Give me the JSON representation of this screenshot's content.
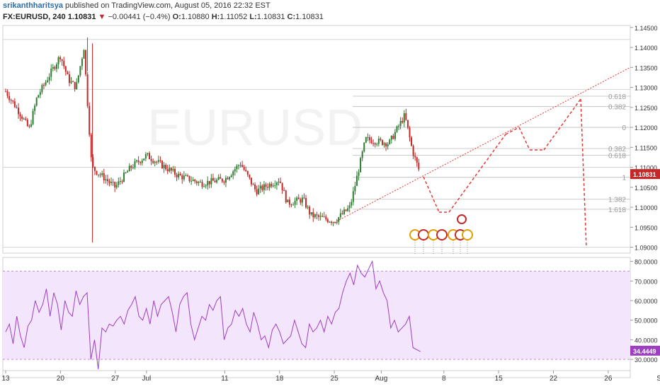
{
  "header": {
    "author": "srikanthharitsya",
    "published_text": "published on TradingView.com, August 05, 2016 22:32 EST",
    "symbol": "FX:EURUSD, 240",
    "last": "1.10831",
    "change_arrow": "▼",
    "change": "−0.00441 (−0.4%)",
    "o_label": "O:",
    "o_value": "1.10880",
    "h_label": "H:",
    "h_value": "1.11052",
    "l_label": "L:",
    "l_value": "1.10831",
    "c_label": "C:",
    "c_value": "1.10831"
  },
  "watermark": "EURUSD",
  "colors": {
    "up": "#2e7d32",
    "down": "#c62828",
    "rsi": "#9c3fc0",
    "rsi_band": "#f3e5fb",
    "price_tag": "#c62828",
    "rsi_tag": "#9c3fc0",
    "fib": "#bbbbbb",
    "projection": "#e53935"
  },
  "chart_data": [
    {
      "type": "candlestick",
      "symbol": "EURUSD",
      "timeframe": "240",
      "y_range": [
        1.0885,
        1.1455
      ],
      "y_ticks": [
        "1.14500",
        "1.14000",
        "1.13500",
        "1.13000",
        "1.12500",
        "1.12000",
        "1.11500",
        "1.11000",
        "1.10500",
        "1.10000",
        "1.09500",
        "1.09000"
      ],
      "x_ticks": [
        "13",
        "20",
        "27",
        "Jul",
        "11",
        "18",
        "25",
        "Aug",
        "8",
        "15",
        "22",
        "26",
        "Sep"
      ],
      "last_price_label": "1.10831",
      "price_path": [
        {
          "d": "Jun 13",
          "p": 1.129
        },
        {
          "d": "Jun 15",
          "p": 1.123
        },
        {
          "d": "Jun 16",
          "p": 1.1195
        },
        {
          "d": "Jun 17",
          "p": 1.1275
        },
        {
          "d": "Jun 20",
          "p": 1.138
        },
        {
          "d": "Jun 21",
          "p": 1.132
        },
        {
          "d": "Jun 22",
          "p": 1.13
        },
        {
          "d": "Jun 23",
          "p": 1.14
        },
        {
          "d": "Jun 24",
          "p": 1.11
        },
        {
          "d": "Jun 27",
          "p": 1.105
        },
        {
          "d": "Jun 29",
          "p": 1.11
        },
        {
          "d": "Jul 1",
          "p": 1.113
        },
        {
          "d": "Jul 5",
          "p": 1.108
        },
        {
          "d": "Jul 8",
          "p": 1.106
        },
        {
          "d": "Jul 11",
          "p": 1.107
        },
        {
          "d": "Jul 13",
          "p": 1.111
        },
        {
          "d": "Jul 15",
          "p": 1.104
        },
        {
          "d": "Jul 18",
          "p": 1.107
        },
        {
          "d": "Jul 19",
          "p": 1.101
        },
        {
          "d": "Jul 21",
          "p": 1.102
        },
        {
          "d": "Jul 22",
          "p": 1.098
        },
        {
          "d": "Jul 25",
          "p": 1.0965
        },
        {
          "d": "Jul 27",
          "p": 1.1
        },
        {
          "d": "Jul 29",
          "p": 1.117
        },
        {
          "d": "Aug 1",
          "p": 1.116
        },
        {
          "d": "Aug 3",
          "p": 1.123
        },
        {
          "d": "Aug 4",
          "p": 1.114
        },
        {
          "d": "Aug 5",
          "p": 1.1083
        }
      ],
      "fib_levels": [
        {
          "label": "0.618",
          "price": 1.1278
        },
        {
          "label": "0.382",
          "price": 1.1252
        },
        {
          "label": "0",
          "price": 1.12
        },
        {
          "label": "0.382",
          "price": 1.1147
        },
        {
          "label": "0.618",
          "price": 1.113
        },
        {
          "label": "1",
          "price": 1.1075
        },
        {
          "label": "1.382",
          "price": 1.102
        },
        {
          "label": "1.618",
          "price": 1.0995
        }
      ]
    },
    {
      "type": "line",
      "name": "RSI",
      "y_range": [
        25,
        82
      ],
      "y_ticks": [
        "80.0000",
        "70.0000",
        "60.0000",
        "50.0000",
        "40.0000",
        "30.0000"
      ],
      "bands": [
        30,
        75
      ],
      "last_value_label": "34.4449",
      "values": [
        44,
        48,
        38,
        52,
        42,
        36,
        47,
        50,
        60,
        54,
        58,
        66,
        52,
        64,
        58,
        45,
        60,
        54,
        52,
        65,
        58,
        62,
        64,
        30,
        40,
        25,
        46,
        44,
        48,
        47,
        50,
        52,
        48,
        55,
        58,
        62,
        52,
        50,
        56,
        48,
        60,
        52,
        58,
        60,
        62,
        54,
        44,
        58,
        62,
        64,
        48,
        40,
        46,
        52,
        50,
        58,
        55,
        60,
        62,
        40,
        46,
        48,
        55,
        52,
        56,
        48,
        44,
        54,
        48,
        40,
        42,
        36,
        45,
        48,
        44,
        38,
        40,
        42,
        50,
        44,
        38,
        36,
        48,
        44,
        46,
        50,
        44,
        52,
        48,
        54,
        56,
        64,
        70,
        74,
        68,
        78,
        74,
        72,
        76,
        80,
        66,
        70,
        64,
        60,
        46,
        50,
        44,
        46,
        48,
        52,
        36,
        35,
        34
      ]
    }
  ]
}
